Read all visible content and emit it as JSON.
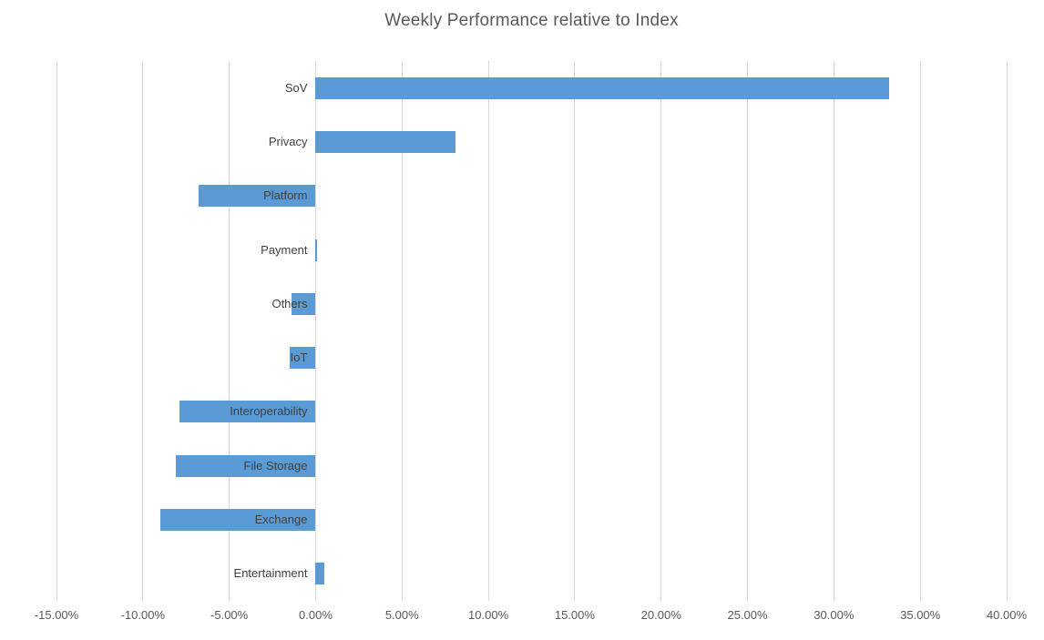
{
  "chart_data": {
    "type": "bar",
    "orientation": "horizontal",
    "title": "Weekly Performance relative to Index",
    "categories": [
      "SoV",
      "Privacy",
      "Platform",
      "Payment",
      "Others",
      "IoT",
      "Interoperability",
      "File Storage",
      "Exchange",
      "Entertainment"
    ],
    "values": [
      33.2,
      8.1,
      -6.8,
      0.1,
      -1.4,
      -1.5,
      -7.9,
      -8.1,
      -9.0,
      0.5
    ],
    "unit": "%",
    "xlabel": "",
    "ylabel": "",
    "xlim": [
      -15,
      40
    ],
    "x_ticks": [
      -15,
      -10,
      -5,
      0,
      5,
      10,
      15,
      20,
      25,
      30,
      35,
      40
    ],
    "x_tick_labels": [
      "-15.00%",
      "-10.00%",
      "-5.00%",
      "0.00%",
      "5.00%",
      "10.00%",
      "15.00%",
      "20.00%",
      "25.00%",
      "30.00%",
      "35.00%",
      "40.00%"
    ],
    "grid": true,
    "legend": false,
    "colors": {
      "bar": "#5b9bd5",
      "gridline": "#d9d9d9",
      "title": "#595959",
      "tick_label": "#595959",
      "category_label": "#3f3f3f"
    }
  }
}
